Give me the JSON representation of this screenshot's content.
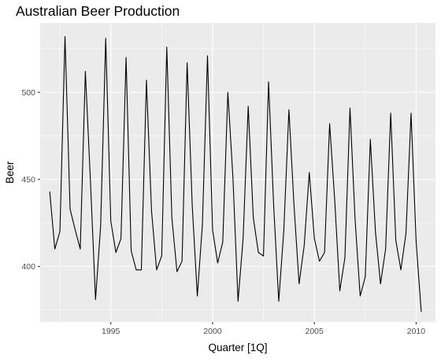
{
  "chart_data": {
    "type": "line",
    "title": "Australian Beer Production",
    "xlabel": "Quarter [1Q]",
    "ylabel": "Beer",
    "x_start": {
      "year": 1992,
      "quarter": 1
    },
    "frequency": "quarterly",
    "series": [
      {
        "values": [
          443,
          410,
          420,
          532,
          433,
          421,
          410,
          512,
          449,
          381,
          423,
          531,
          426,
          408,
          416,
          520,
          409,
          398,
          398,
          507,
          432,
          398,
          406,
          526,
          428,
          397,
          403,
          517,
          435,
          383,
          424,
          521,
          421,
          402,
          414,
          500,
          451,
          380,
          416,
          492,
          428,
          408,
          406,
          506,
          435,
          380,
          421,
          490,
          435,
          390,
          412,
          454,
          416,
          403,
          408,
          482,
          438,
          386,
          405,
          491,
          427,
          383,
          394,
          473,
          420,
          390,
          410,
          488,
          415,
          398,
          419,
          488,
          414,
          374
        ],
        "color": "#000000"
      }
    ],
    "xlim": [
      1991.53,
      2010.95
    ],
    "ylim": [
      368.1,
      539.9
    ],
    "x_ticks": [
      1995,
      2000,
      2005,
      2010
    ],
    "x_minor_ticks": [
      1992.5,
      1997.5,
      2002.5,
      2007.5
    ],
    "y_ticks": [
      400,
      450,
      500
    ],
    "y_minor_ticks": [
      375,
      425,
      475,
      525
    ],
    "grid": true,
    "legend": "none",
    "panel_color": "#ebebeb",
    "grid_color": "#ffffff"
  }
}
